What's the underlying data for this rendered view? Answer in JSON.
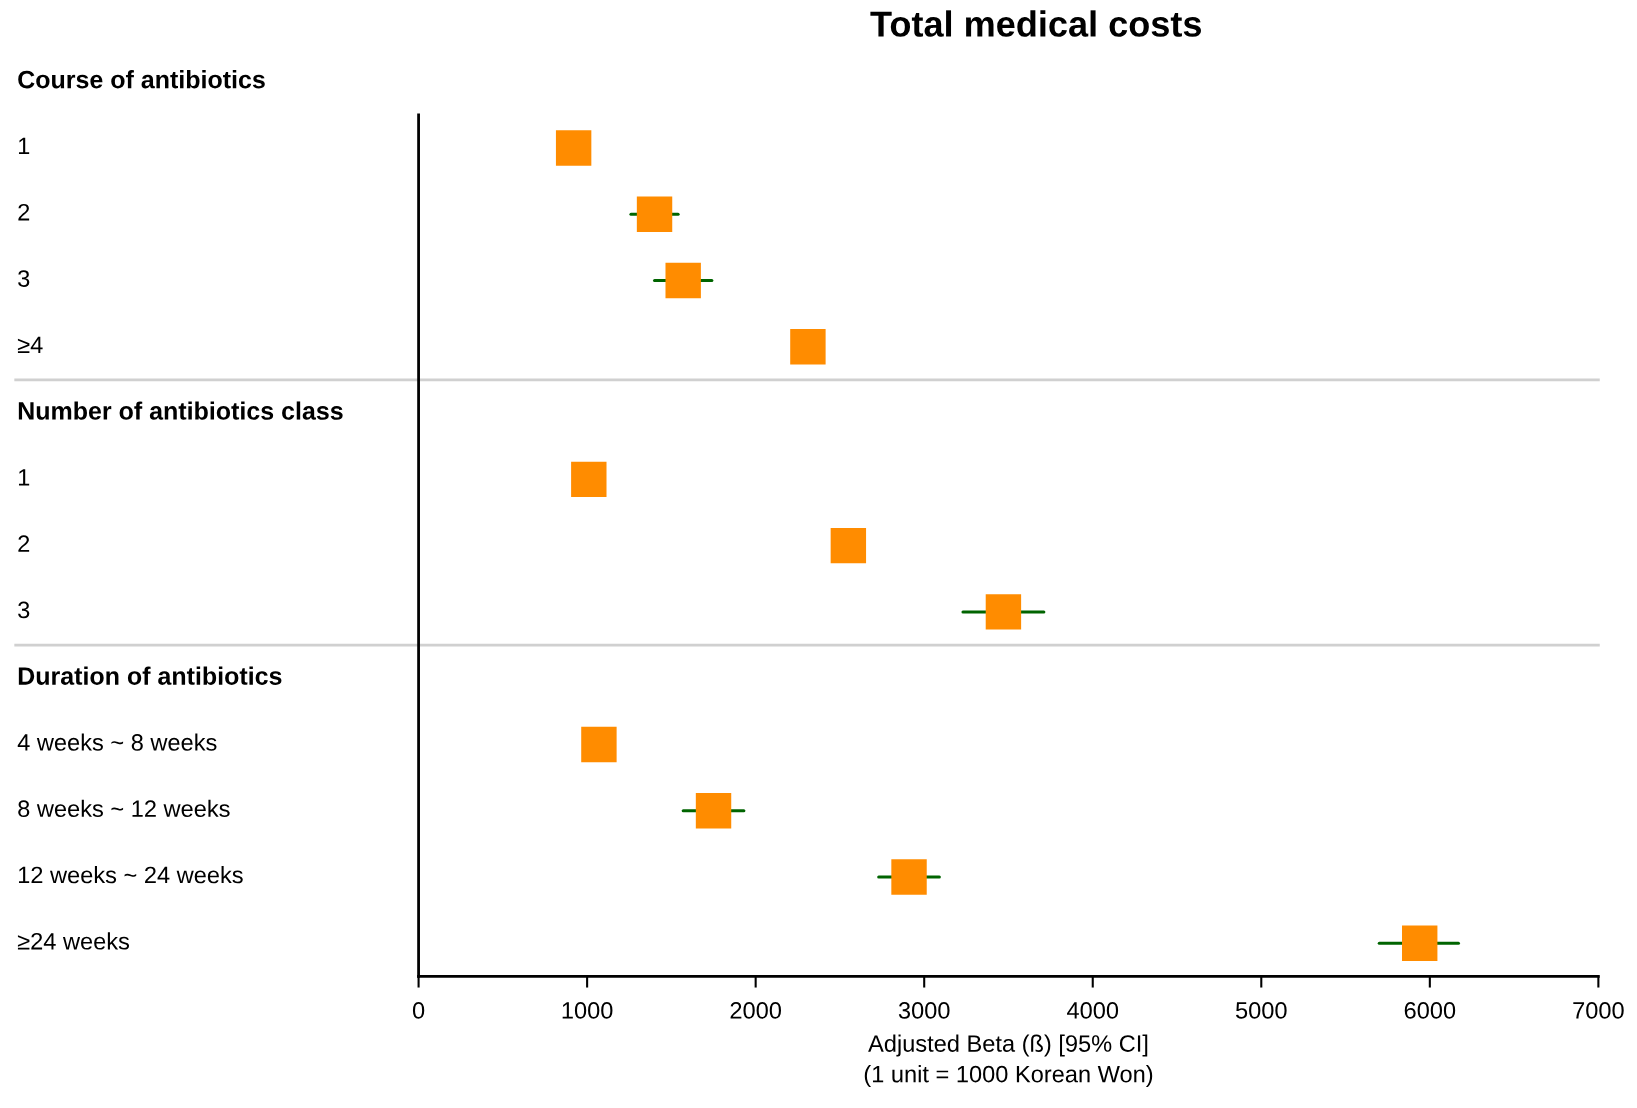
{
  "chart_data": {
    "type": "scatter",
    "orientation": "horizontal",
    "title": "Total medical costs",
    "xlabel": "Adjusted Beta (ß) [95% CI]\n(1 unit = 1000 Korean Won)",
    "categories": [
      "Course of antibiotics",
      "1",
      "2",
      "3",
      "≥4",
      "Number of antibiotics class",
      "1",
      "2",
      "3",
      "Duration of antibiotics",
      "4 weeks ~ 8 weeks",
      "8 weeks ~ 12 weeks",
      "12 weeks ~ 24 weeks",
      "≥24 weeks"
    ],
    "values": [
      null,
      920,
      1400,
      1570,
      2310,
      null,
      1010,
      2550,
      3470,
      null,
      1070,
      1750,
      2910,
      5940
    ],
    "errors": [
      null,
      null,
      [
        1260,
        1540
      ],
      [
        1400,
        1740
      ],
      null,
      null,
      null,
      null,
      [
        3230,
        3710
      ],
      null,
      null,
      [
        1570,
        1930
      ],
      [
        2730,
        3090
      ],
      [
        5700,
        6170
      ]
    ],
    "color": "#ff8c00",
    "marker": "square",
    "xlim": [
      0,
      7000
    ],
    "xticks": [
      0,
      1000,
      2000,
      3000,
      4000,
      5000,
      6000,
      7000
    ],
    "grid": false,
    "legend": false
  }
}
